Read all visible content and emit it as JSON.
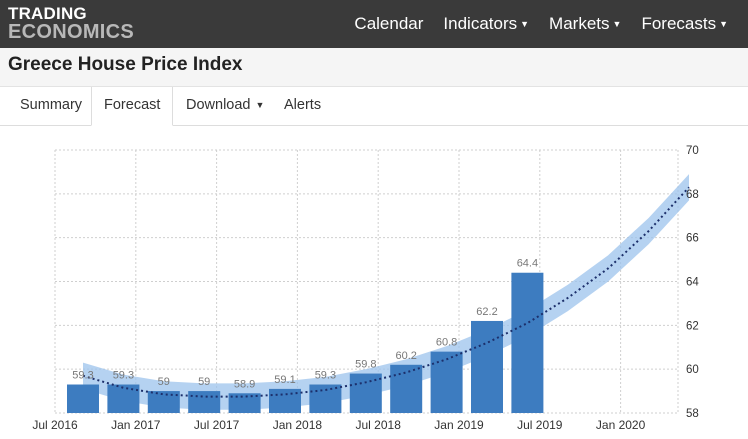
{
  "header": {
    "logo_line1": "TRADING",
    "logo_line2": "ECONOMICS",
    "nav": [
      {
        "label": "Calendar",
        "dropdown": false
      },
      {
        "label": "Indicators",
        "dropdown": true
      },
      {
        "label": "Markets",
        "dropdown": true
      },
      {
        "label": "Forecasts",
        "dropdown": true
      }
    ]
  },
  "page_title": "Greece House Price Index",
  "tabs": [
    {
      "label": "Summary",
      "active": false,
      "dropdown": false
    },
    {
      "label": "Forecast",
      "active": true,
      "dropdown": false
    },
    {
      "label": "Download",
      "active": false,
      "dropdown": true
    },
    {
      "label": "Alerts",
      "active": false,
      "dropdown": false
    }
  ],
  "colors": {
    "bar": "#3d7cc0",
    "band": "#9cc3ec",
    "trend": "#1c2f6b",
    "grid": "#cfcfcf",
    "label": "#777777",
    "header_bg": "#3a3a3a"
  },
  "chart_data": {
    "type": "bar",
    "x_tick_labels": [
      "Jul 2016",
      "Jan 2017",
      "Jul 2017",
      "Jan 2018",
      "Jul 2018",
      "Jan 2019",
      "Jul 2019",
      "Jan 2020"
    ],
    "categories": [
      "Q3 2016",
      "Q4 2016",
      "Q1 2017",
      "Q2 2017",
      "Q3 2017",
      "Q4 2017",
      "Q1 2018",
      "Q2 2018",
      "Q3 2018",
      "Q4 2018",
      "Q1 2019",
      "Q2 2019"
    ],
    "values": [
      59.3,
      59.3,
      59,
      59,
      58.9,
      59.1,
      59.3,
      59.8,
      60.2,
      60.8,
      62.2,
      64.4
    ],
    "data_labels": [
      "59.3",
      "59.3",
      "59",
      "59",
      "58.9",
      "59.1",
      "59.3",
      "59.8",
      "60.2",
      "60.8",
      "62.2",
      "64.4"
    ],
    "trend": {
      "x": [
        "Q3 2016",
        "Q4 2016",
        "Q1 2017",
        "Q2 2017",
        "Q3 2017",
        "Q4 2017",
        "Q1 2018",
        "Q2 2018",
        "Q3 2018",
        "Q4 2018",
        "Q1 2019",
        "Q2 2019",
        "Q3 2019",
        "Q4 2019",
        "Q1 2020",
        "Q2 2020"
      ],
      "values": [
        59.7,
        59.15,
        58.85,
        58.75,
        58.75,
        58.85,
        59.05,
        59.4,
        59.85,
        60.45,
        61.2,
        62.1,
        63.25,
        64.6,
        66.3,
        68.3
      ]
    },
    "band_halfwidth": 0.6,
    "y_ticks": [
      58,
      60,
      62,
      64,
      66,
      68,
      70
    ],
    "ylim": [
      58,
      70
    ],
    "y_axis_side": "right",
    "grid": true,
    "title": "",
    "xlabel": "",
    "ylabel": ""
  }
}
